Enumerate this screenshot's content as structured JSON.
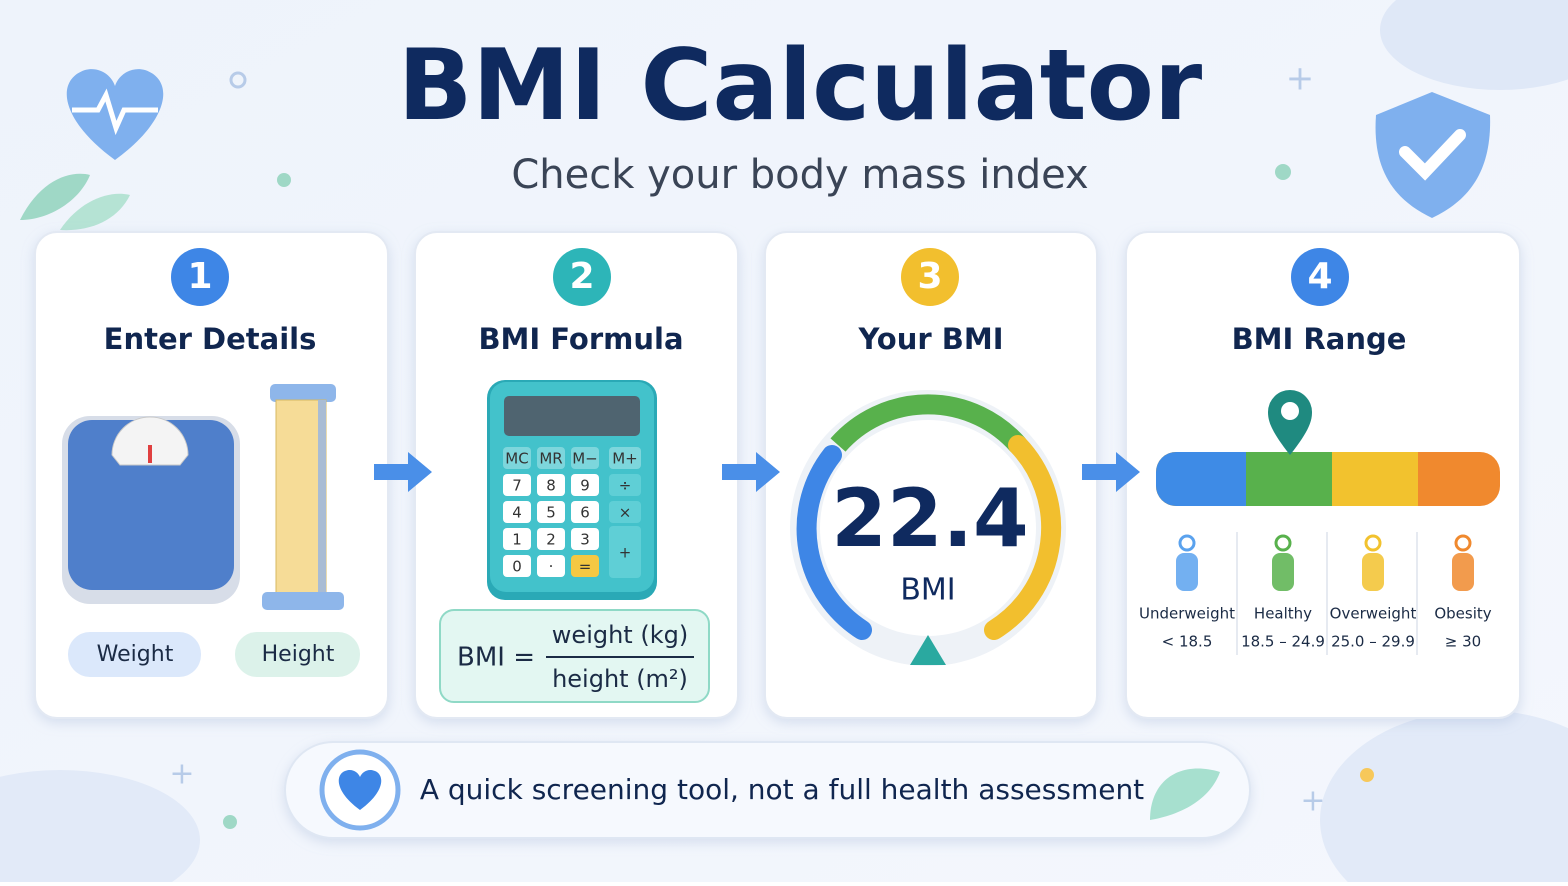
{
  "header": {
    "title": "BMI Calculator",
    "subtitle": "Check your body mass index"
  },
  "steps": [
    {
      "number": "1",
      "title": "Enter Details",
      "labels": [
        "Weight",
        "Height"
      ]
    },
    {
      "number": "2",
      "title": "BMI Formula",
      "calculator_keys": [
        "MC",
        "MR",
        "M−",
        "M+",
        "7",
        "8",
        "9",
        "÷",
        "4",
        "5",
        "6",
        "×",
        "1",
        "2",
        "3",
        "+",
        "0",
        "·",
        "="
      ],
      "formula": {
        "lhs": "BMI =",
        "numerator": "weight (kg)",
        "denominator": "height (m²)"
      }
    },
    {
      "number": "3",
      "title": "Your BMI",
      "value": "22.4",
      "unit": "BMI"
    },
    {
      "number": "4",
      "title": "BMI Range",
      "ranges": [
        {
          "label": "Underweight",
          "range": "< 18.5"
        },
        {
          "label": "Healthy",
          "range": "18.5 – 24.9"
        },
        {
          "label": "Overweight",
          "range": "25.0 – 29.9"
        },
        {
          "label": "Obesity",
          "range": "≥ 30"
        }
      ]
    }
  ],
  "footer": "A quick screening tool, not a full health assessment"
}
